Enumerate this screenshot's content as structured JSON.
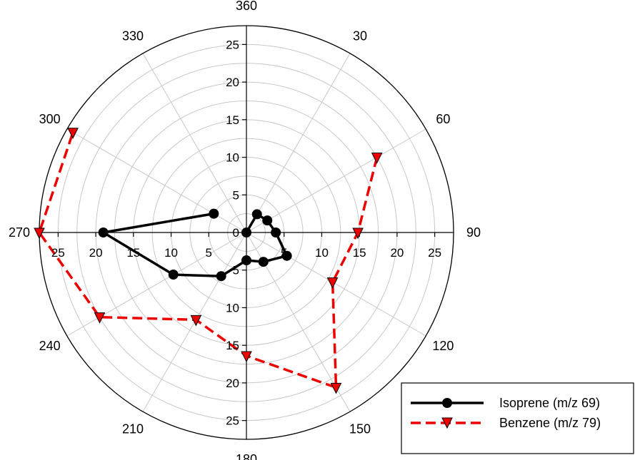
{
  "chart_data": {
    "type": "polar",
    "angle_labels": [
      "360",
      "30",
      "60",
      "90",
      "120",
      "150",
      "180",
      "210",
      "240",
      "270",
      "300",
      "330"
    ],
    "radial_ticks": [
      "0",
      "5",
      "10",
      "15",
      "20",
      "25"
    ],
    "rlim": [
      0,
      27.5
    ],
    "grid": true,
    "legend_position": "bottom-right",
    "series": [
      {
        "name": "Isoprene (m/z 69)",
        "color": "#000000",
        "marker": "circle",
        "line_style": "solid",
        "points": [
          {
            "theta": 0,
            "r": 0
          },
          {
            "theta": 30,
            "r": 2.8
          },
          {
            "theta": 60,
            "r": 3.2
          },
          {
            "theta": 90,
            "r": 3.9
          },
          {
            "theta": 120,
            "r": 6.2
          },
          {
            "theta": 150,
            "r": 4.5
          },
          {
            "theta": 180,
            "r": 3.7
          },
          {
            "theta": 210,
            "r": 6.7
          },
          {
            "theta": 240,
            "r": 11.2
          },
          {
            "theta": 270,
            "r": 19.0
          },
          {
            "theta": 300,
            "r": 5.0
          }
        ]
      },
      {
        "name": "Benzene (m/z 79)",
        "color": "#ee0000",
        "marker": "triangle-down",
        "line_style": "dashed",
        "points": [
          {
            "theta": 60,
            "r": 20.0
          },
          {
            "theta": 90,
            "r": 14.8
          },
          {
            "theta": 120,
            "r": 13.2
          },
          {
            "theta": 150,
            "r": 23.8
          },
          {
            "theta": 180,
            "r": 16.4
          },
          {
            "theta": 210,
            "r": 13.4
          },
          {
            "theta": 240,
            "r": 22.5
          },
          {
            "theta": 270,
            "r": 27.5
          },
          {
            "theta": 300,
            "r": 26.6
          }
        ]
      }
    ]
  }
}
